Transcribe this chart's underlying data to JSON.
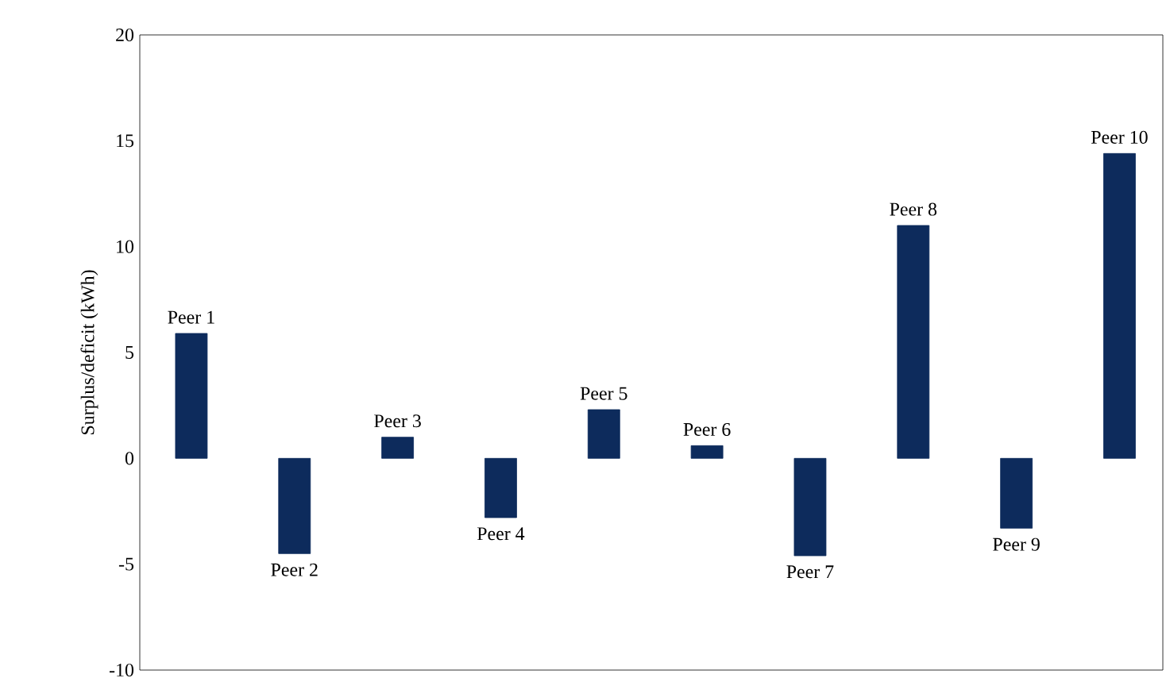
{
  "chart_data": {
    "type": "bar",
    "ylabel": "Surplus/deficit (kWh)",
    "categories": [
      "Peer 1",
      "Peer 2",
      "Peer 3",
      "Peer 4",
      "Peer 5",
      "Peer 6",
      "Peer 7",
      "Peer 8",
      "Peer 9",
      "Peer 10"
    ],
    "values": [
      5.9,
      -4.5,
      1.0,
      -2.8,
      2.3,
      0.6,
      -4.6,
      11.0,
      -3.3,
      14.4
    ],
    "color": "#0d2b5c",
    "ylim": [
      -10,
      20
    ],
    "yticks": [
      -10,
      -5,
      0,
      5,
      10,
      15,
      20
    ],
    "tick_labels": "y",
    "grid": false
  }
}
